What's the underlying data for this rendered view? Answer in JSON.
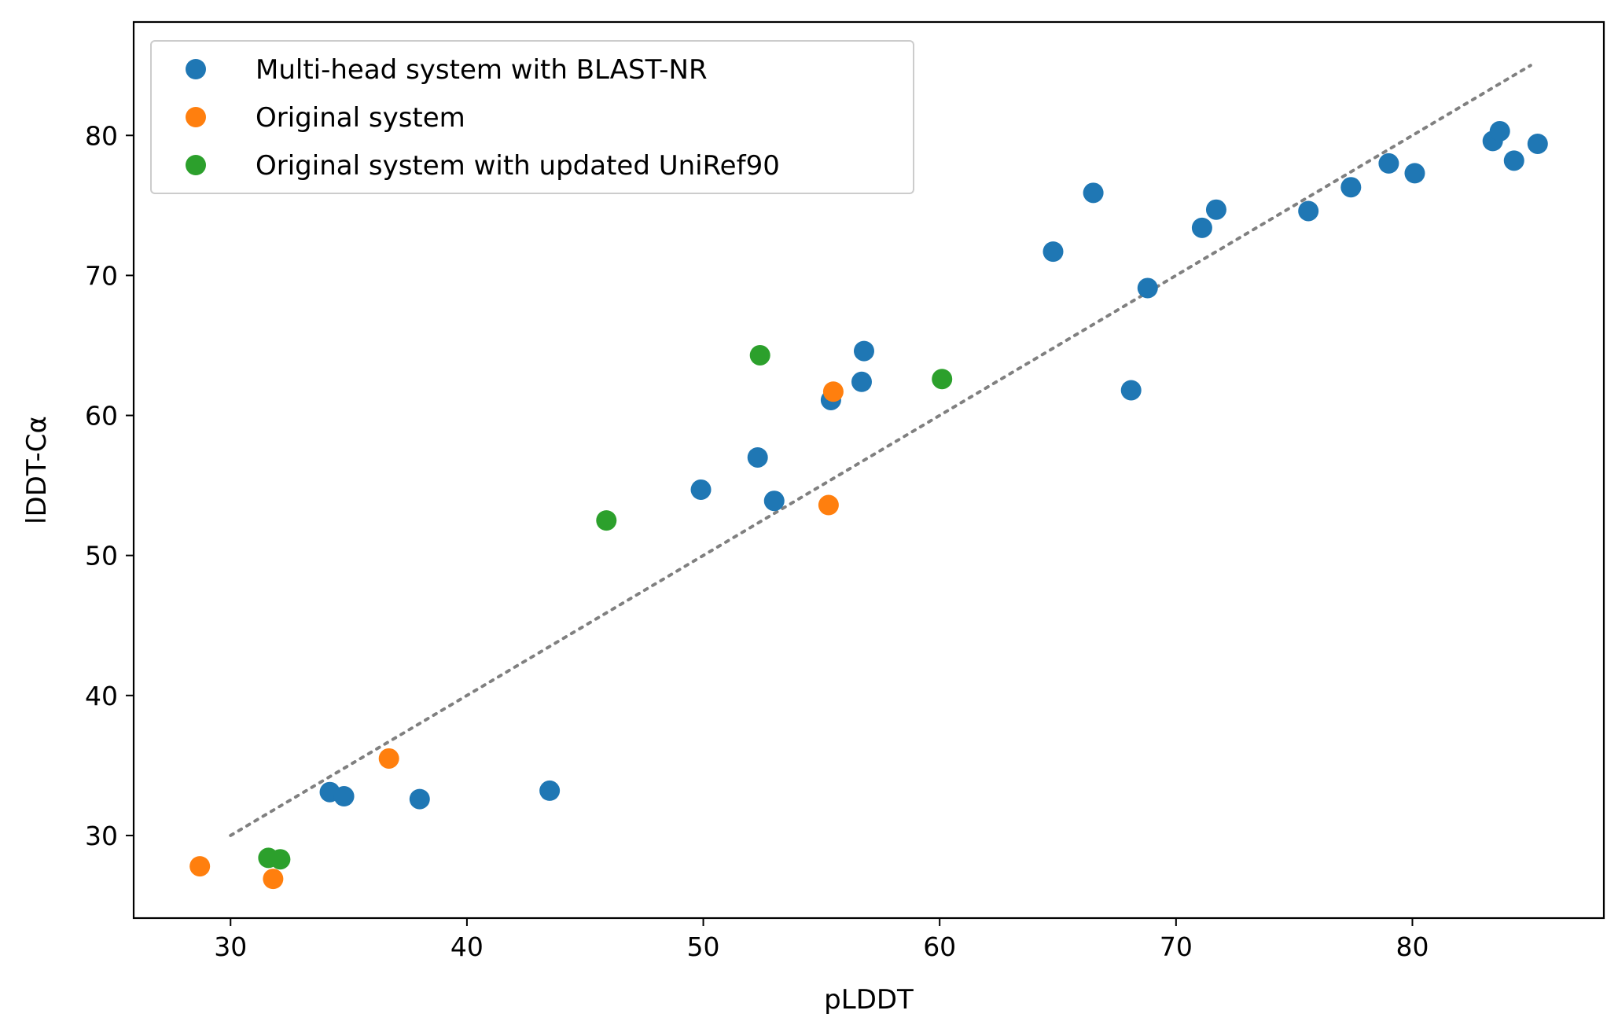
{
  "chart_data": {
    "type": "scatter",
    "title": "",
    "xlabel": "pLDDT",
    "ylabel": "lDDT-Cα",
    "xlim": [
      25.9,
      88.1
    ],
    "ylim": [
      24.1,
      88.1
    ],
    "x_ticks": [
      30,
      40,
      50,
      60,
      70,
      80
    ],
    "y_ticks": [
      30,
      40,
      50,
      60,
      70,
      80
    ],
    "grid": false,
    "legend_position": "upper-left",
    "reference_line": {
      "style": "dotted",
      "color": "#808080",
      "from": [
        30,
        30
      ],
      "to": [
        85,
        85
      ]
    },
    "series": [
      {
        "name": "Multi-head system with BLAST-NR",
        "color": "#1f77b4",
        "points": [
          [
            34.2,
            33.1
          ],
          [
            34.8,
            32.8
          ],
          [
            38.0,
            32.6
          ],
          [
            43.5,
            33.2
          ],
          [
            49.9,
            54.7
          ],
          [
            52.3,
            57.0
          ],
          [
            53.0,
            53.9
          ],
          [
            55.4,
            61.1
          ],
          [
            56.7,
            62.4
          ],
          [
            56.8,
            64.6
          ],
          [
            64.8,
            71.7
          ],
          [
            66.5,
            75.9
          ],
          [
            68.1,
            61.8
          ],
          [
            68.8,
            69.1
          ],
          [
            71.1,
            73.4
          ],
          [
            71.7,
            74.7
          ],
          [
            75.6,
            74.6
          ],
          [
            77.4,
            76.3
          ],
          [
            79.0,
            78.0
          ],
          [
            80.1,
            77.3
          ],
          [
            83.4,
            79.6
          ],
          [
            83.7,
            80.3
          ],
          [
            84.3,
            78.2
          ],
          [
            85.3,
            79.4
          ]
        ]
      },
      {
        "name": "Original system",
        "color": "#ff7f0e",
        "points": [
          [
            28.7,
            27.8
          ],
          [
            31.8,
            26.9
          ],
          [
            36.7,
            35.5
          ],
          [
            55.3,
            53.6
          ],
          [
            55.5,
            61.7
          ]
        ]
      },
      {
        "name": "Original system with updated UniRef90",
        "color": "#2ca02c",
        "points": [
          [
            31.6,
            28.4
          ],
          [
            32.1,
            28.3
          ],
          [
            45.9,
            52.5
          ],
          [
            52.4,
            64.3
          ],
          [
            60.1,
            62.6
          ]
        ]
      }
    ]
  }
}
